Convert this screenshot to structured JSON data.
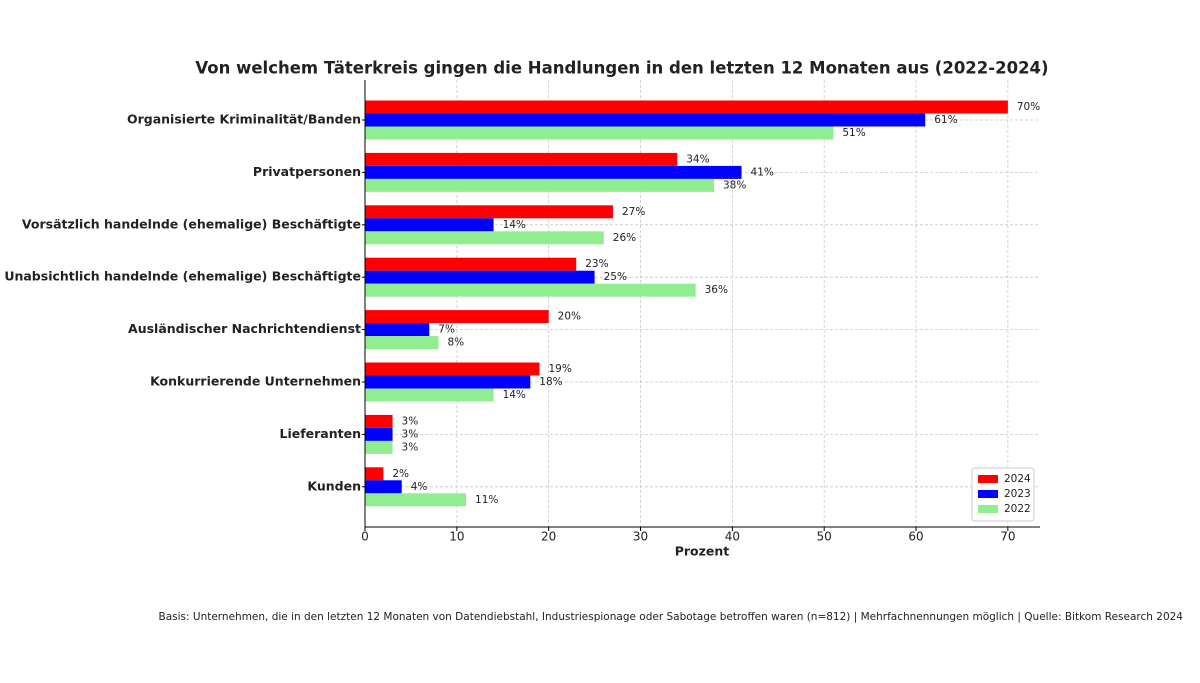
{
  "chart_data": {
    "type": "hbar",
    "title": "Von welchem Täterkreis gingen die Handlungen in den letzten 12 Monaten aus (2022-2024)",
    "categories": [
      "Organisierte Kriminalität/Banden",
      "Privatpersonen",
      "Vorsätzlich handelnde (ehemalige) Beschäftigte",
      "Unabsichtlich handelnde (ehemalige) Beschäftigte",
      "Ausländischer Nachrichtendienst",
      "Konkurrierende Unternehmen",
      "Lieferanten",
      "Kunden"
    ],
    "series": [
      {
        "name": "2024",
        "color": "#ff0000",
        "values": [
          70,
          34,
          27,
          23,
          20,
          19,
          3,
          2
        ],
        "value_labels": [
          "70%",
          "34%",
          "27%",
          "23%",
          "20%",
          "19%",
          "3%",
          "2%"
        ]
      },
      {
        "name": "2023",
        "color": "#0000ff",
        "values": [
          61,
          41,
          14,
          25,
          7,
          18,
          3,
          4
        ],
        "value_labels": [
          "61%",
          "41%",
          "14%",
          "25%",
          "7%",
          "18%",
          "3%",
          "4%"
        ]
      },
      {
        "name": "2022",
        "color": "#90ee90",
        "values": [
          51,
          38,
          26,
          36,
          8,
          14,
          3,
          11
        ],
        "value_labels": [
          "51%",
          "38%",
          "26%",
          "36%",
          "8%",
          "14%",
          "3%",
          "11%"
        ]
      }
    ],
    "xlabel": "Prozent",
    "xlim": [
      0,
      73.5
    ],
    "xticks": [
      0,
      10,
      20,
      30,
      40,
      50,
      60,
      70
    ],
    "grid": true,
    "legend": "lower right",
    "footnote": "Basis: Unternehmen, die in den letzten 12 Monaten von Datendiebstahl, Industriespionage oder Sabotage betroffen waren (n=812) | Mehrfachnennungen möglich | Quelle: Bitkom Research 2024"
  }
}
